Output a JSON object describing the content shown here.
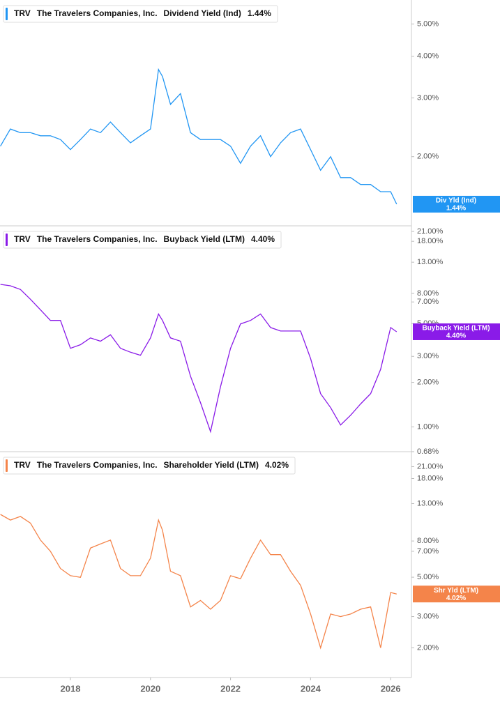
{
  "chart_data": [
    {
      "type": "line",
      "log_scale": true,
      "ticker": "TRV",
      "company": "The Travelers Companies, Inc.",
      "x": [
        2016.25,
        2016.5,
        2016.75,
        2017,
        2017.25,
        2017.5,
        2017.75,
        2018,
        2018.25,
        2018.5,
        2018.75,
        2019,
        2019.25,
        2019.5,
        2019.75,
        2020,
        2020.2,
        2020.3,
        2020.5,
        2020.75,
        2021,
        2021.25,
        2021.5,
        2021.75,
        2022,
        2022.25,
        2022.5,
        2022.75,
        2023,
        2023.25,
        2023.5,
        2023.75,
        2024,
        2024.25,
        2024.5,
        2024.75,
        2025,
        2025.25,
        2025.5,
        2025.75,
        2026,
        2026.15
      ],
      "xlim": [
        2016.24,
        2026.52
      ],
      "ylim": [
        1.24,
        5.9
      ],
      "yticks": [
        {
          "value": 2,
          "label": "2.00%"
        },
        {
          "value": 3,
          "label": "3.00%"
        },
        {
          "value": 4,
          "label": "4.00%"
        },
        {
          "value": 5,
          "label": "5.00%"
        }
      ],
      "series": [
        {
          "name": "Dividend Yield (Ind)",
          "short_name": "Div Yld (Ind)",
          "color": "#2196f3",
          "last_value_label": "1.44%",
          "values": [
            2.15,
            2.42,
            2.36,
            2.36,
            2.31,
            2.31,
            2.25,
            2.1,
            2.25,
            2.42,
            2.36,
            2.54,
            2.36,
            2.2,
            2.31,
            2.42,
            3.65,
            3.48,
            2.87,
            3.09,
            2.36,
            2.25,
            2.25,
            2.25,
            2.15,
            1.91,
            2.15,
            2.31,
            2.0,
            2.2,
            2.36,
            2.42,
            2.1,
            1.82,
            2.0,
            1.73,
            1.73,
            1.65,
            1.65,
            1.57,
            1.57,
            1.44
          ]
        }
      ]
    },
    {
      "type": "line",
      "log_scale": true,
      "ticker": "TRV",
      "company": "The Travelers Companies, Inc.",
      "x": [
        2016.25,
        2016.5,
        2016.75,
        2017,
        2017.25,
        2017.5,
        2017.75,
        2018,
        2018.25,
        2018.5,
        2018.75,
        2019,
        2019.25,
        2019.5,
        2019.75,
        2020,
        2020.2,
        2020.3,
        2020.5,
        2020.75,
        2021,
        2021.25,
        2021.5,
        2021.75,
        2022,
        2022.25,
        2022.5,
        2022.75,
        2023,
        2023.25,
        2023.5,
        2023.75,
        2024,
        2024.25,
        2024.5,
        2024.75,
        2025,
        2025.25,
        2025.5,
        2025.75,
        2026,
        2026.15
      ],
      "xlim": [
        2016.24,
        2026.52
      ],
      "ylim": [
        0.68,
        22.9
      ],
      "yticks": [
        {
          "value": 0.68,
          "label": "0.68%"
        },
        {
          "value": 1,
          "label": "1.00%"
        },
        {
          "value": 2,
          "label": "2.00%"
        },
        {
          "value": 3,
          "label": "3.00%"
        },
        {
          "value": 5,
          "label": "5.00%"
        },
        {
          "value": 7,
          "label": "7.00%"
        },
        {
          "value": 8,
          "label": "8.00%"
        },
        {
          "value": 13,
          "label": "13.00%"
        },
        {
          "value": 18,
          "label": "18.00%"
        },
        {
          "value": 21,
          "label": "21.00%"
        }
      ],
      "series": [
        {
          "name": "Buyback Yield (LTM)",
          "short_name": "Buyback Yield (LTM)",
          "color": "#8a1be8",
          "last_value_label": "4.40%",
          "values": [
            9.2,
            9.0,
            8.5,
            7.3,
            6.2,
            5.25,
            5.25,
            3.4,
            3.6,
            4.0,
            3.8,
            4.2,
            3.4,
            3.2,
            3.05,
            4.0,
            5.8,
            5.25,
            4.0,
            3.8,
            2.2,
            1.46,
            0.93,
            1.87,
            3.4,
            4.97,
            5.25,
            5.8,
            4.7,
            4.45,
            4.45,
            4.45,
            2.9,
            1.68,
            1.35,
            1.03,
            1.2,
            1.43,
            1.68,
            2.45,
            4.7,
            4.4
          ]
        }
      ]
    },
    {
      "type": "line",
      "log_scale": true,
      "ticker": "TRV",
      "company": "The Travelers Companies, Inc.",
      "x": [
        2016.25,
        2016.5,
        2016.75,
        2017,
        2017.25,
        2017.5,
        2017.75,
        2018,
        2018.25,
        2018.5,
        2018.75,
        2019,
        2019.25,
        2019.5,
        2019.75,
        2020,
        2020.2,
        2020.3,
        2020.5,
        2020.75,
        2021,
        2021.25,
        2021.5,
        2021.75,
        2022,
        2022.25,
        2022.5,
        2022.75,
        2023,
        2023.25,
        2023.5,
        2023.75,
        2024,
        2024.25,
        2024.5,
        2024.75,
        2025,
        2025.25,
        2025.5,
        2025.75,
        2026,
        2026.15
      ],
      "xlim": [
        2016.24,
        2026.52
      ],
      "xticks": [
        2018,
        2020,
        2022,
        2024,
        2026
      ],
      "ylim": [
        1.36,
        25.5
      ],
      "yticks": [
        {
          "value": 2,
          "label": "2.00%"
        },
        {
          "value": 3,
          "label": "3.00%"
        },
        {
          "value": 5,
          "label": "5.00%"
        },
        {
          "value": 7,
          "label": "7.00%"
        },
        {
          "value": 8,
          "label": "8.00%"
        },
        {
          "value": 13,
          "label": "13.00%"
        },
        {
          "value": 18,
          "label": "18.00%"
        },
        {
          "value": 21,
          "label": "21.00%"
        }
      ],
      "series": [
        {
          "name": "Shareholder Yield (LTM)",
          "short_name": "Shr Yld (LTM)",
          "color": "#f4844a",
          "last_value_label": "4.02%",
          "values": [
            11.3,
            10.5,
            11.0,
            10.1,
            8.1,
            7.0,
            5.6,
            5.1,
            4.99,
            7.3,
            7.7,
            8.1,
            5.6,
            5.1,
            5.1,
            6.4,
            10.5,
            9.2,
            5.4,
            5.1,
            3.4,
            3.7,
            3.3,
            3.7,
            5.1,
            4.9,
            6.4,
            8.1,
            6.7,
            6.7,
            5.4,
            4.5,
            3.1,
            2.0,
            3.1,
            3.0,
            3.1,
            3.3,
            3.4,
            2.0,
            4.1,
            4.02
          ]
        }
      ]
    }
  ]
}
